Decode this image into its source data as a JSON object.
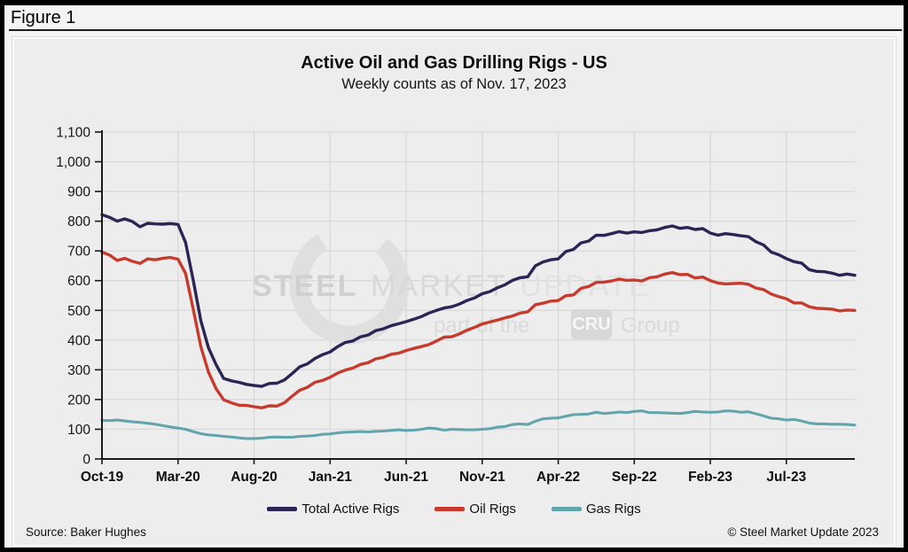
{
  "figure_label": "Figure 1",
  "title": "Active Oil and Gas Drilling Rigs - US",
  "subtitle": "Weekly counts as of Nov. 17, 2023",
  "source": "Source: Baker Hughes",
  "copyright": "© Steel Market Update 2023",
  "watermark": {
    "word1": "STEEL",
    "word2": "MARKET",
    "word3": "UPDATE",
    "tagline_prefix": "part of the",
    "tagline_box": "CRU",
    "tagline_suffix": "Group"
  },
  "legend": [
    {
      "label": "Total Active Rigs",
      "color": "#2b2556"
    },
    {
      "label": "Oil Rigs",
      "color": "#c63b2e"
    },
    {
      "label": "Gas Rigs",
      "color": "#63a5ac"
    }
  ],
  "chart_data": {
    "type": "line",
    "title": "Active Oil and Gas Drilling Rigs - US",
    "subtitle": "Weekly counts as of Nov. 17, 2023",
    "x_unit": "time, Oct 2019 through Nov 17 2023, one point per ~2 weeks",
    "x_months_start": 0,
    "x_months_step": 0.5,
    "x_months_end": 49.5,
    "x_tick_months": [
      0,
      5,
      10,
      15,
      20,
      25,
      30,
      35,
      40,
      45
    ],
    "x_tick_labels": [
      "Oct-19",
      "Mar-20",
      "Aug-20",
      "Jan-21",
      "Jun-21",
      "Nov-21",
      "Apr-22",
      "Sep-22",
      "Feb-23",
      "Jul-23"
    ],
    "ylim": [
      0,
      1100
    ],
    "y_tick_step": 100,
    "y_tick_labels": [
      "0",
      "100",
      "200",
      "300",
      "400",
      "500",
      "600",
      "700",
      "800",
      "900",
      "1,000",
      "1,100"
    ],
    "grid": true,
    "legend_position": "bottom",
    "series": [
      {
        "name": "Total Active Rigs",
        "color": "#2b2556",
        "values": [
          822,
          813,
          800,
          808,
          799,
          781,
          793,
          791,
          790,
          792,
          789,
          728,
          602,
          465,
          374,
          318,
          271,
          263,
          258,
          251,
          247,
          244,
          254,
          255,
          266,
          287,
          310,
          320,
          338,
          351,
          360,
          378,
          392,
          397,
          411,
          417,
          432,
          438,
          448,
          455,
          462,
          470,
          479,
          491,
          500,
          508,
          512,
          521,
          533,
          542,
          556,
          563,
          576,
          586,
          601,
          610,
          613,
          650,
          663,
          670,
          673,
          698,
          705,
          727,
          733,
          753,
          752,
          758,
          765,
          760,
          764,
          762,
          768,
          771,
          779,
          784,
          776,
          779,
          772,
          775,
          760,
          753,
          758,
          755,
          751,
          748,
          731,
          720,
          696,
          687,
          674,
          664,
          659,
          637,
          631,
          630,
          625,
          618,
          622,
          618
        ]
      },
      {
        "name": "Oil Rigs",
        "color": "#c63b2e",
        "values": [
          696,
          686,
          668,
          675,
          665,
          658,
          673,
          670,
          675,
          678,
          672,
          624,
          504,
          378,
          292,
          237,
          199,
          189,
          181,
          180,
          176,
          172,
          179,
          178,
          189,
          211,
          231,
          241,
          258,
          264,
          275,
          289,
          299,
          306,
          318,
          324,
          337,
          342,
          352,
          356,
          365,
          372,
          378,
          385,
          397,
          410,
          411,
          421,
          433,
          443,
          454,
          461,
          467,
          475,
          481,
          491,
          495,
          519,
          524,
          531,
          533,
          549,
          552,
          574,
          580,
          594,
          595,
          599,
          605,
          601,
          602,
          599,
          610,
          613,
          622,
          627,
          620,
          621,
          609,
          612,
          600,
          592,
          589,
          590,
          591,
          588,
          575,
          570,
          555,
          546,
          539,
          525,
          525,
          512,
          507,
          506,
          504,
          498,
          501,
          500
        ]
      },
      {
        "name": "Gas Rigs",
        "color": "#63a5ac",
        "values": [
          130,
          129,
          131,
          128,
          125,
          123,
          120,
          117,
          112,
          108,
          104,
          100,
          92,
          85,
          81,
          79,
          76,
          74,
          71,
          69,
          69,
          70,
          73,
          74,
          73,
          73,
          76,
          77,
          79,
          83,
          84,
          88,
          90,
          91,
          92,
          91,
          93,
          94,
          96,
          98,
          96,
          97,
          100,
          104,
          102,
          97,
          100,
          99,
          98,
          98,
          100,
          102,
          107,
          109,
          116,
          118,
          116,
          127,
          135,
          137,
          138,
          144,
          149,
          150,
          151,
          157,
          153,
          155,
          158,
          156,
          160,
          162,
          156,
          156,
          155,
          154,
          153,
          156,
          160,
          158,
          157,
          158,
          162,
          161,
          157,
          159,
          152,
          145,
          137,
          135,
          131,
          133,
          128,
          121,
          118,
          118,
          117,
          117,
          116,
          114
        ]
      }
    ]
  }
}
